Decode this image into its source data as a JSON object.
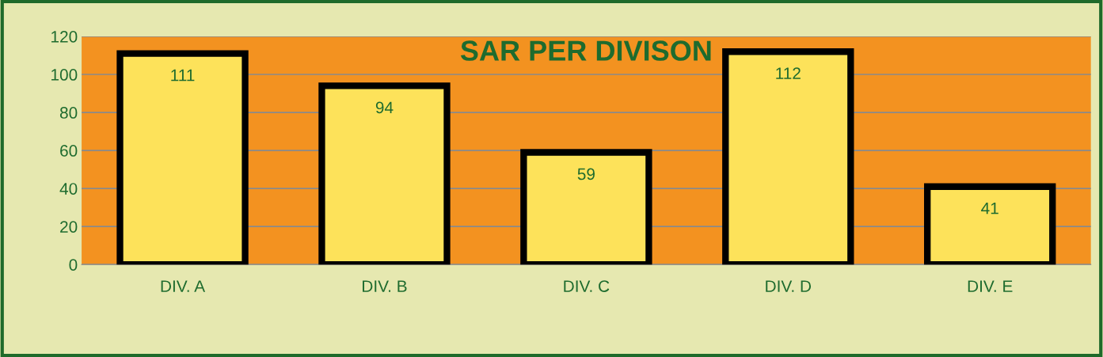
{
  "chart_data": {
    "type": "bar",
    "title": "SAR PER DIVISON",
    "categories": [
      "DIV. A",
      "DIV. B",
      "DIV. C",
      "DIV. D",
      "DIV. E"
    ],
    "values": [
      111,
      94,
      59,
      112,
      41
    ],
    "color": "#fde25a",
    "ylim": [
      0,
      120
    ],
    "yticks": [
      0,
      20,
      40,
      60,
      80,
      100,
      120
    ],
    "grid": "y",
    "data_labels": true
  }
}
